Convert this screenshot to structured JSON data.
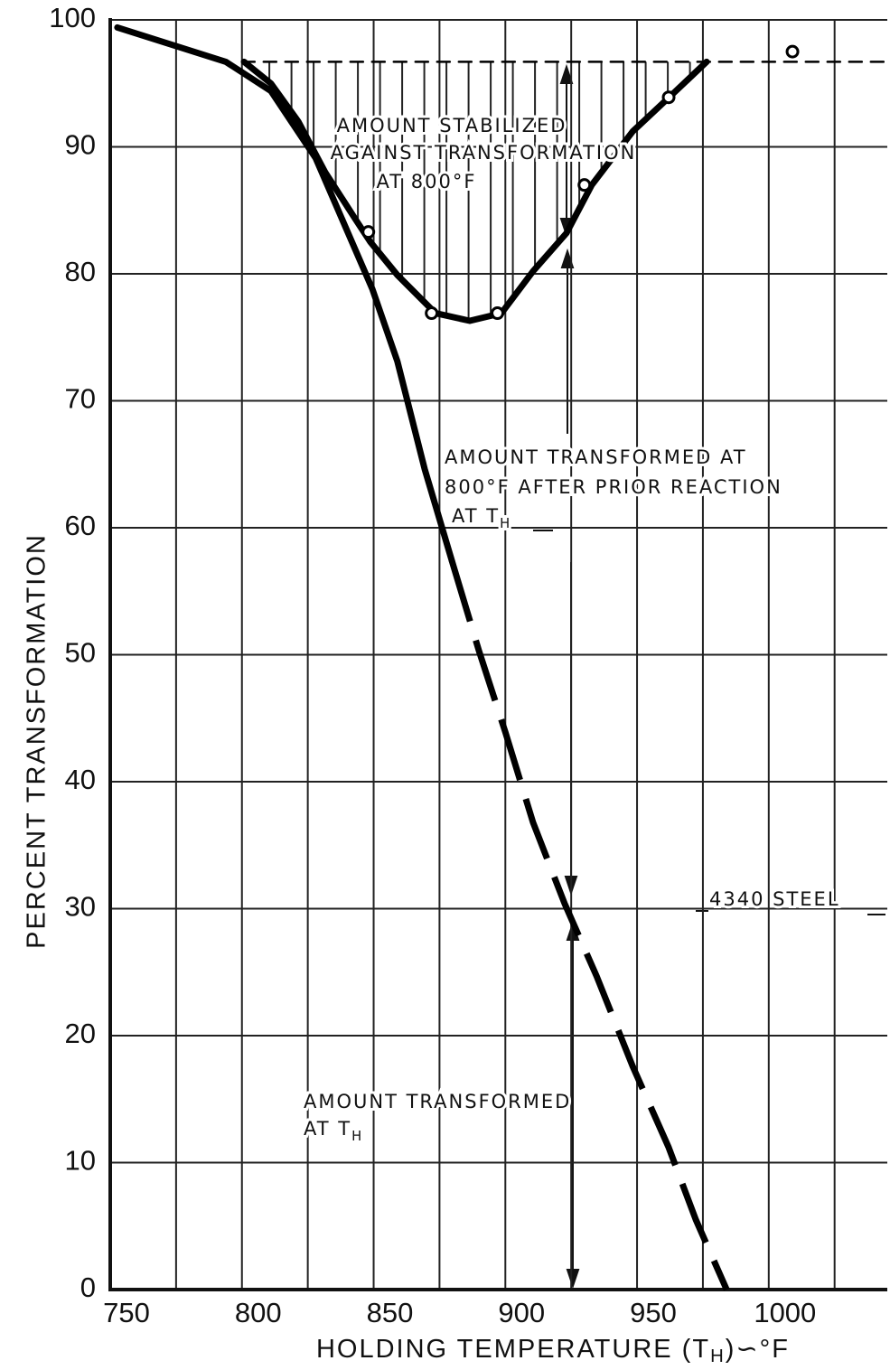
{
  "chart_data": {
    "type": "line",
    "x_label": [
      "HOLDING TEMPERATURE (T",
      "H",
      ")∽°F"
    ],
    "y_label": "PERCENT TRANSFORMATION",
    "xlim": [
      750,
      1045
    ],
    "ylim": [
      0,
      100
    ],
    "xticks": [
      750,
      800,
      850,
      900,
      950,
      1000
    ],
    "xgrid_minor": [
      775,
      825,
      875,
      925,
      975,
      1025
    ],
    "yticks": [
      0,
      10,
      20,
      30,
      40,
      50,
      60,
      70,
      80,
      90,
      100
    ],
    "grid": true,
    "series": [
      {
        "style": "solid",
        "color": "#000",
        "x": [
          752.7,
          793.9,
          811,
          828,
          849.5,
          859,
          869.4,
          879.7
        ],
        "values": [
          99.4,
          96.7,
          94.4,
          89.1,
          78.8,
          73.1,
          64.6,
          57.4
        ]
      },
      {
        "style": "dashed",
        "color": "#000",
        "x": [
          879.7,
          890,
          900,
          910.5,
          922.5,
          934.6,
          948.3,
          962,
          972.3,
          984
        ],
        "values": [
          57.4,
          50.3,
          43.9,
          36.8,
          30.4,
          24.7,
          17.6,
          11.2,
          5.5,
          0
        ]
      },
      {
        "style": "solid",
        "color": "#000",
        "x": [
          800.8,
          811,
          821.4,
          831.6,
          843.7,
          848.8,
          859,
          873.5,
          886.5,
          898.5,
          910.5,
          923.2,
          932.8,
          948.3,
          963.7,
          976.4
        ],
        "values": [
          96.7,
          95,
          92,
          88,
          84.1,
          82.5,
          79.9,
          76.9,
          76.3,
          76.9,
          80.2,
          83.2,
          87,
          91.2,
          94.2,
          96.7
        ]
      },
      {
        "style": "markers",
        "color": "#000",
        "x": [
          848,
          872,
          897,
          930,
          962,
          1009
        ],
        "values": [
          83.3,
          76.9,
          76.9,
          87,
          93.9,
          97.5
        ]
      },
      {
        "style": "reference",
        "color": "#000",
        "x": [
          800,
          1045
        ],
        "values": [
          96.7,
          96.7
        ]
      }
    ],
    "annotations": [
      [
        "AMOUNT STABILIZED",
        "AGAINST TRANSFORMATION",
        "AT 800°F"
      ],
      [
        "AMOUNT TRANSFORMED AT",
        "800°F AFTER PRIOR REACTION",
        [
          "AT T",
          "H"
        ]
      ],
      [
        "4340 STEEL"
      ],
      [
        "AMOUNT TRANSFORMED",
        [
          "AT T",
          "H"
        ]
      ]
    ]
  }
}
